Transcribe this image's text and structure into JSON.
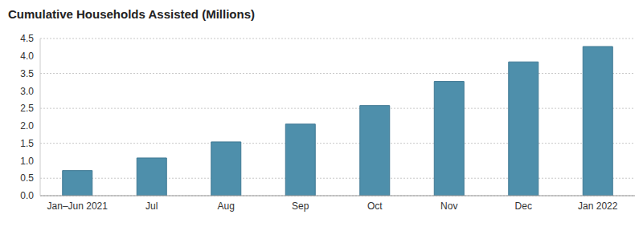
{
  "chart_data": {
    "type": "bar",
    "title": "Cumulative Households Assisted (Millions)",
    "categories": [
      "Jan–Jun 2021",
      "Jul",
      "Aug",
      "Sep",
      "Oct",
      "Nov",
      "Dec",
      "Jan 2022"
    ],
    "values": [
      0.72,
      1.08,
      1.54,
      2.05,
      2.58,
      3.27,
      3.83,
      4.27
    ],
    "color": "#4e8fab",
    "ylim": [
      0,
      4.5
    ],
    "yticks": [
      {
        "value": 0,
        "label": "0.0"
      },
      0.5,
      {
        "value": 1,
        "label": "1.0"
      },
      1.5,
      {
        "value": 2,
        "label": "2.0"
      },
      2.5,
      {
        "value": 3,
        "label": "3.0"
      },
      3.5,
      {
        "value": 4,
        "label": "4.0"
      },
      4.5
    ],
    "grid": true
  }
}
